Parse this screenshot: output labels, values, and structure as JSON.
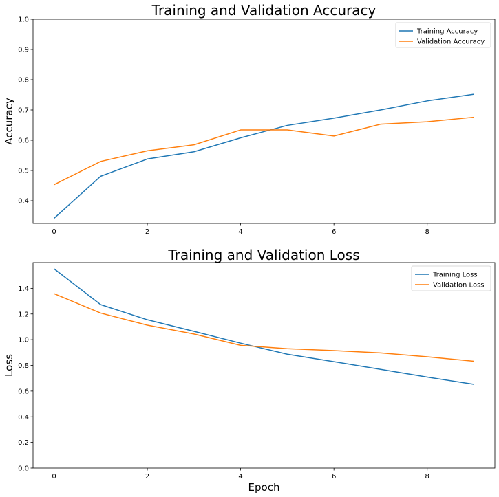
{
  "chart_data": [
    {
      "type": "line",
      "title": "Training and Validation Accuracy",
      "xlabel": "",
      "ylabel": "Accuracy",
      "x": [
        0,
        1,
        2,
        3,
        4,
        5,
        6,
        7,
        8,
        9
      ],
      "xlim": [
        -0.45,
        9.45
      ],
      "ylim": [
        0.325,
        1.0
      ],
      "xticks": [
        0,
        2,
        4,
        6,
        8
      ],
      "yticks": [
        0.4,
        0.5,
        0.6,
        0.7,
        0.8,
        0.9,
        1.0
      ],
      "ytick_labels": [
        "0.4",
        "0.5",
        "0.6",
        "0.7",
        "0.8",
        "0.9",
        "1.0"
      ],
      "legend": "top-right",
      "grid": false,
      "series": [
        {
          "name": "Training Accuracy",
          "color": "#1f77b4",
          "values": [
            0.342,
            0.481,
            0.538,
            0.562,
            0.608,
            0.649,
            0.673,
            0.7,
            0.73,
            0.752
          ]
        },
        {
          "name": "Validation Accuracy",
          "color": "#ff7f0e",
          "values": [
            0.453,
            0.53,
            0.565,
            0.585,
            0.634,
            0.634,
            0.614,
            0.653,
            0.661,
            0.676
          ]
        }
      ]
    },
    {
      "type": "line",
      "title": "Training and Validation Loss",
      "xlabel": "Epoch",
      "ylabel": "Loss",
      "x": [
        0,
        1,
        2,
        3,
        4,
        5,
        6,
        7,
        8,
        9
      ],
      "xlim": [
        -0.45,
        9.45
      ],
      "ylim": [
        0.0,
        1.6
      ],
      "xticks": [
        0,
        2,
        4,
        6,
        8
      ],
      "yticks": [
        0.0,
        0.2,
        0.4,
        0.6,
        0.8,
        1.0,
        1.2,
        1.4
      ],
      "ytick_labels": [
        "0.0",
        "0.2",
        "0.4",
        "0.6",
        "0.8",
        "1.0",
        "1.2",
        "1.4"
      ],
      "legend": "top-right",
      "grid": false,
      "series": [
        {
          "name": "Training Loss",
          "color": "#1f77b4",
          "values": [
            1.552,
            1.273,
            1.155,
            1.065,
            0.973,
            0.887,
            0.829,
            0.769,
            0.709,
            0.653
          ]
        },
        {
          "name": "Validation Loss",
          "color": "#ff7f0e",
          "values": [
            1.358,
            1.207,
            1.113,
            1.044,
            0.956,
            0.93,
            0.915,
            0.897,
            0.867,
            0.832
          ]
        }
      ]
    }
  ]
}
